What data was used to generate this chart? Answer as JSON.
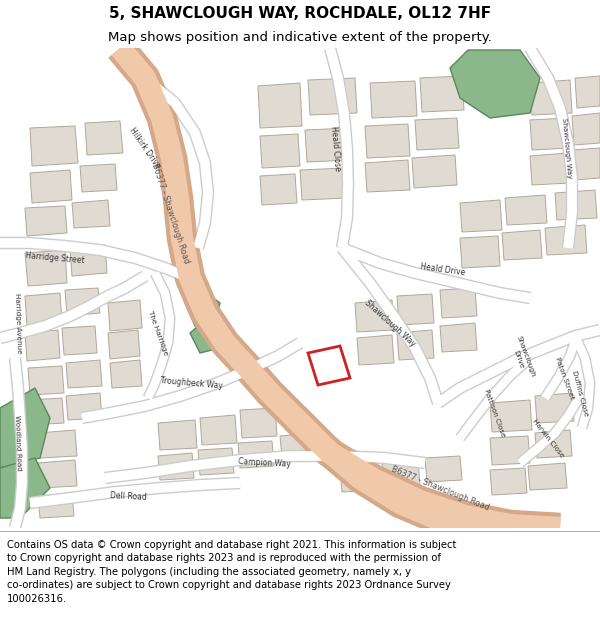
{
  "title": "5, SHAWCLOUGH WAY, ROCHDALE, OL12 7HF",
  "subtitle": "Map shows position and indicative extent of the property.",
  "footer": "Contains OS data © Crown copyright and database right 2021. This information is subject\nto Crown copyright and database rights 2023 and is reproduced with the permission of\nHM Land Registry. The polygons (including the associated geometry, namely x, y\nco-ordinates) are subject to Crown copyright and database rights 2023 Ordnance Survey\n100026316.",
  "map_bg": "#f5f4f0",
  "road_main_fill": "#f0c8aa",
  "road_main_edge": "#d4a888",
  "road_minor_fill": "#ffffff",
  "road_minor_edge": "#cccccc",
  "building_fill": "#e0dbd2",
  "building_edge": "#b0a898",
  "green_fill": "#8ab88a",
  "green_edge": "#5a885a",
  "property_fill": "#ffffff",
  "property_edge": "#cc2222",
  "title_fontsize": 11,
  "subtitle_fontsize": 9.5,
  "footer_fontsize": 7.2,
  "label_color": "#333333",
  "road_label_color": "#555555"
}
